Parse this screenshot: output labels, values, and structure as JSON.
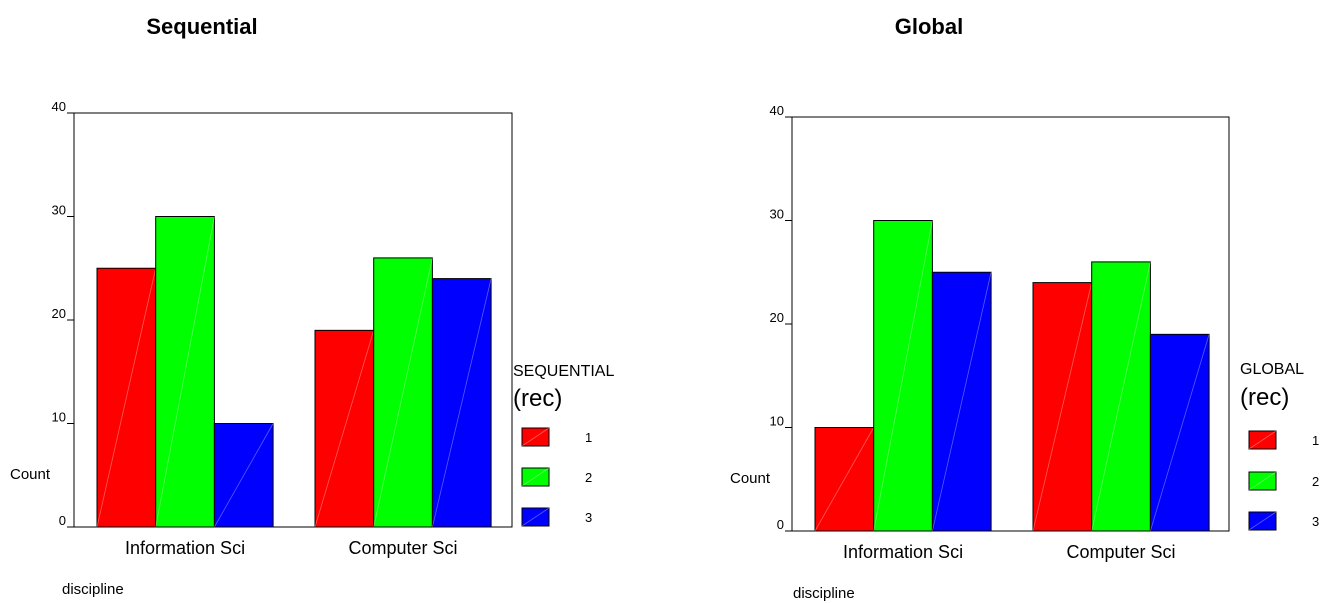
{
  "colors": {
    "s1": "#ff0000",
    "s2": "#00ff00",
    "s3": "#0000ff"
  },
  "chart_data": [
    {
      "type": "bar",
      "title": "Sequential",
      "xlabel": "discipline",
      "ylabel": "Count",
      "ylim": [
        0,
        40
      ],
      "yticks": [
        "0",
        "10",
        "20",
        "30",
        "40"
      ],
      "categories": [
        "Information Sci",
        "Computer Sci"
      ],
      "legend_title_line1": "SEQUENTIAL",
      "legend_title_line2": "(rec)",
      "legend_position": "right",
      "series": [
        {
          "name": "1",
          "values": [
            25,
            19
          ]
        },
        {
          "name": "2",
          "values": [
            30,
            26
          ]
        },
        {
          "name": "3",
          "values": [
            10,
            24
          ]
        }
      ]
    },
    {
      "type": "bar",
      "title": "Global",
      "xlabel": "discipline",
      "ylabel": "Count",
      "ylim": [
        0,
        40
      ],
      "yticks": [
        "0",
        "10",
        "20",
        "30",
        "40"
      ],
      "categories": [
        "Information Sci",
        "Computer Sci"
      ],
      "legend_title_line1": "GLOBAL",
      "legend_title_line2": "(rec)",
      "legend_position": "right",
      "series": [
        {
          "name": "1",
          "values": [
            10,
            24
          ]
        },
        {
          "name": "2",
          "values": [
            30,
            26
          ]
        },
        {
          "name": "3",
          "values": [
            25,
            19
          ]
        }
      ]
    }
  ]
}
